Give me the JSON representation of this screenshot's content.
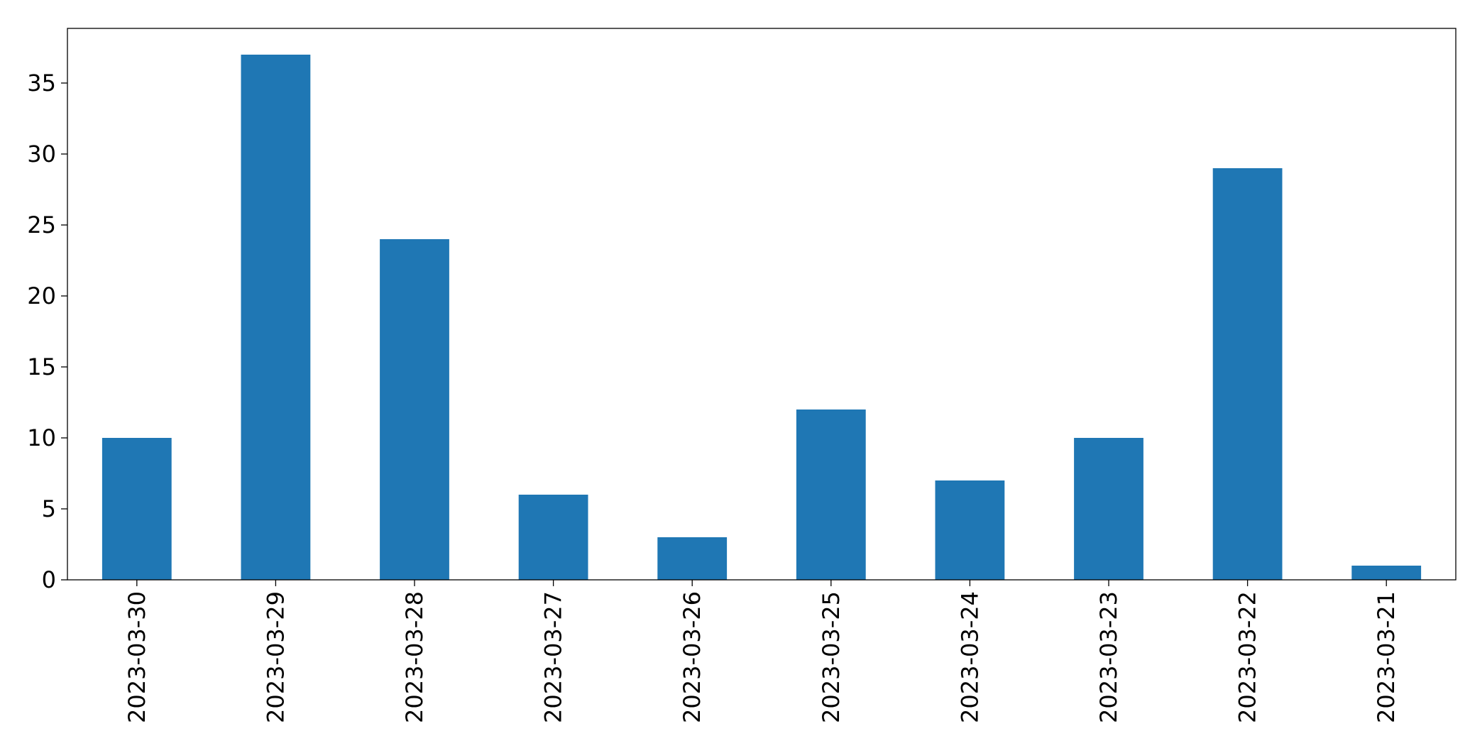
{
  "chart_data": {
    "type": "bar",
    "categories": [
      "2023-03-30",
      "2023-03-29",
      "2023-03-28",
      "2023-03-27",
      "2023-03-26",
      "2023-03-25",
      "2023-03-24",
      "2023-03-23",
      "2023-03-22",
      "2023-03-21"
    ],
    "values": [
      10,
      37,
      24,
      6,
      3,
      12,
      7,
      10,
      29,
      1
    ],
    "color": "#1f77b4",
    "ylim": [
      0,
      38.85
    ],
    "yticks": [
      0,
      5,
      10,
      15,
      20,
      25,
      30,
      35
    ],
    "grid": false
  }
}
